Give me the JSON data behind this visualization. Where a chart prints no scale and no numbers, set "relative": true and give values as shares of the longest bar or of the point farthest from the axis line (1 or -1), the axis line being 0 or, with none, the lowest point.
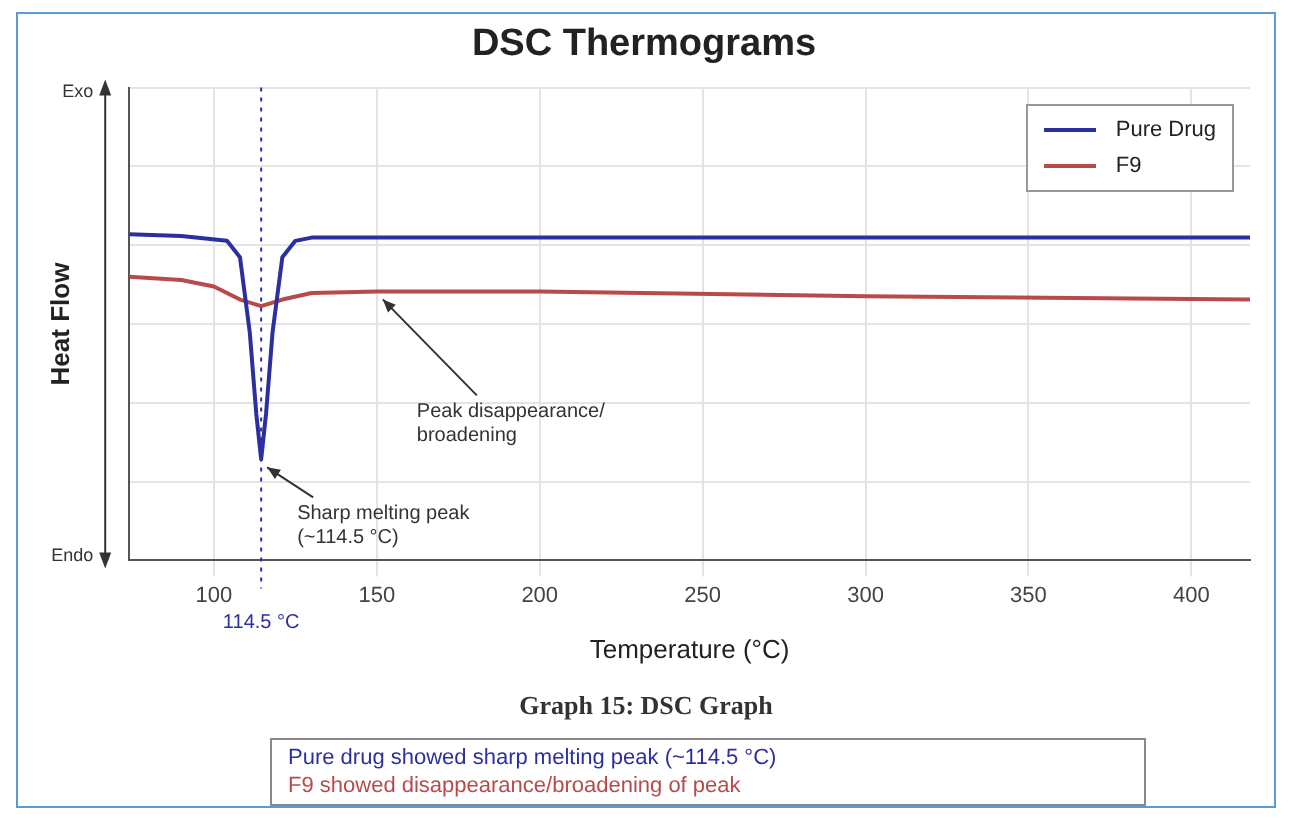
{
  "chart_data": {
    "type": "line",
    "title": "DSC Thermograms",
    "xlabel": "Temperature (°C)",
    "ylabel": "Heat Flow",
    "relative": true,
    "xlim": [
      74,
      418
    ],
    "xticks": [
      100,
      150,
      200,
      250,
      300,
      350,
      400
    ],
    "grid": true,
    "legend": "top right",
    "tick_labels": "x",
    "marker": "none",
    "line_style": "solid",
    "series": [
      {
        "name": "Pure Drug",
        "color": "#2b2fa0",
        "x": [
          74,
          90,
          104,
          108,
          111,
          113,
          114.5,
          116,
          118,
          121,
          125,
          130,
          200,
          300,
          418
        ],
        "values": [
          1.0,
          0.995,
          0.98,
          0.93,
          0.7,
          0.45,
          0.31,
          0.45,
          0.7,
          0.93,
          0.98,
          0.99,
          0.99,
          0.99,
          0.99
        ]
      },
      {
        "name": "F9",
        "color": "#b84a4a",
        "x": [
          74,
          90,
          100,
          108,
          114.5,
          121,
          130,
          150,
          200,
          300,
          418
        ],
        "values": [
          0.87,
          0.86,
          0.84,
          0.8,
          0.78,
          0.8,
          0.82,
          0.825,
          0.825,
          0.81,
          0.8
        ]
      }
    ],
    "ref_lines": [
      {
        "axis": "x",
        "value": 114.5,
        "label": "114.5 °C",
        "line_style": "dotted",
        "color": "#2b2fa0"
      }
    ],
    "annotations": [
      "Exo",
      "Endo",
      "Graph 15: DSC Graph",
      "Pure drug showed sharp melting peak (~114.5 °C)",
      "F9 showed disappearance/broadening of peak",
      {
        "text": "Sharp melting peak\n(~114.5 °C)",
        "x": 114.5,
        "y": 0.31
      },
      {
        "text": "Peak disappearance/\nbroadening",
        "x": 150,
        "y": 0.825
      }
    ]
  }
}
